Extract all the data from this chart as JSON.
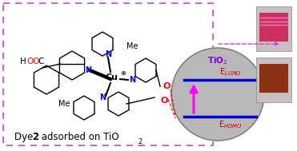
{
  "bg_color": "#ffffff",
  "dashed_box_color": "#cc44cc",
  "circle_color": "#b8b8b8",
  "circle_edge_color": "#808080",
  "tio2_label": "TiO$_2$",
  "tio2_color": "#8800cc",
  "lumo_label": "E$_{LUMO}$",
  "lumo_color": "#cc0000",
  "homo_label": "E$_{HOMO}$",
  "homo_color": "#cc0000",
  "level_color": "#0000dd",
  "arrow_color": "#ff00ff",
  "dashed_arrow_color": "#cc44cc",
  "photo_top_color": "#c04070",
  "photo_bottom_color": "#7a2810",
  "caption_text": "Dye ",
  "caption_bold": "2",
  "caption_rest": " adsorbed on TiO$_2$"
}
